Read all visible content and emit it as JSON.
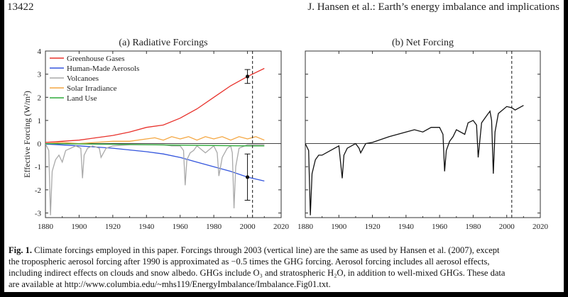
{
  "header": {
    "page_number": "13422",
    "running_title": "J. Hansen et al.: Earth’s energy imbalance and implications"
  },
  "colors": {
    "greenhouse": "#e8322c",
    "aerosols": "#3355dd",
    "volcanoes": "#a9a9a9",
    "solar": "#f4a640",
    "landuse": "#2eaa3a",
    "net": "#111111"
  },
  "chart_data": [
    {
      "type": "line",
      "title": "(a)  Radiative Forcings",
      "xlabel": "",
      "ylabel": "Effective Forcing (W/m²)",
      "xlim": [
        1880,
        2020
      ],
      "ylim": [
        -3.2,
        4
      ],
      "xticks": [
        1880,
        1900,
        1920,
        1940,
        1960,
        1980,
        2000,
        2020
      ],
      "yticks": [
        -3,
        -2,
        -1,
        0,
        1,
        2,
        3,
        4
      ],
      "vline_x": 2003,
      "legend_position": "top-left",
      "series": [
        {
          "name": "Greenhouse Gases",
          "color_key": "greenhouse",
          "x": [
            1880,
            1890,
            1900,
            1910,
            1920,
            1930,
            1940,
            1950,
            1960,
            1970,
            1980,
            1990,
            2000,
            2010
          ],
          "values": [
            0.05,
            0.1,
            0.15,
            0.25,
            0.35,
            0.5,
            0.7,
            0.8,
            1.1,
            1.5,
            2.0,
            2.5,
            2.9,
            3.25
          ]
        },
        {
          "name": "Human-Made Aerosols",
          "color_key": "aerosols",
          "x": [
            1880,
            1900,
            1920,
            1940,
            1950,
            1960,
            1970,
            1980,
            1990,
            2000,
            2010
          ],
          "values": [
            -0.02,
            -0.1,
            -0.2,
            -0.35,
            -0.45,
            -0.6,
            -0.8,
            -1.0,
            -1.2,
            -1.45,
            -1.62
          ]
        },
        {
          "name": "Volcanoes",
          "color_key": "volcanoes",
          "x": [
            1880,
            1882,
            1883,
            1884,
            1886,
            1888,
            1890,
            1892,
            1895,
            1898,
            1901,
            1902,
            1903,
            1905,
            1908,
            1912,
            1913,
            1916,
            1920,
            1930,
            1940,
            1950,
            1955,
            1960,
            1962,
            1963,
            1964,
            1966,
            1968,
            1970,
            1975,
            1980,
            1982,
            1983,
            1985,
            1988,
            1990,
            1991,
            1992,
            1993,
            1995,
            2000,
            2010
          ],
          "values": [
            0.0,
            -0.3,
            -3.1,
            -1.2,
            -0.7,
            -0.5,
            -0.8,
            -0.3,
            -0.2,
            -0.1,
            -0.2,
            -1.5,
            -0.5,
            -0.2,
            -0.1,
            -0.2,
            -0.6,
            -0.2,
            -0.1,
            -0.05,
            -0.05,
            -0.05,
            -0.1,
            -0.1,
            -0.3,
            -1.8,
            -0.7,
            -0.4,
            -0.3,
            -0.1,
            -0.4,
            -0.1,
            -0.4,
            -1.4,
            -0.6,
            -0.2,
            -0.1,
            -0.4,
            -2.8,
            -1.0,
            -0.2,
            -0.05,
            -0.05
          ]
        },
        {
          "name": "Solar Irradiance",
          "color_key": "solar",
          "x": [
            1880,
            1890,
            1900,
            1910,
            1920,
            1930,
            1940,
            1945,
            1950,
            1955,
            1960,
            1965,
            1970,
            1975,
            1980,
            1985,
            1990,
            1995,
            2000,
            2005,
            2010
          ],
          "values": [
            0.0,
            0.05,
            0.0,
            0.05,
            0.1,
            0.1,
            0.2,
            0.25,
            0.15,
            0.3,
            0.2,
            0.3,
            0.15,
            0.3,
            0.2,
            0.3,
            0.15,
            0.3,
            0.2,
            0.3,
            0.15
          ]
        },
        {
          "name": "Land Use",
          "color_key": "landuse",
          "x": [
            1880,
            1920,
            1960,
            2000,
            2010
          ],
          "values": [
            0.0,
            -0.03,
            -0.07,
            -0.1,
            -0.1
          ]
        }
      ],
      "error_bars": [
        {
          "x": 2000,
          "y": 2.9,
          "low": 2.6,
          "high": 3.2
        },
        {
          "x": 2000,
          "y": -1.45,
          "low": -2.45,
          "high": -0.45
        }
      ]
    },
    {
      "type": "line",
      "title": "(b)  Net Forcing",
      "xlabel": "",
      "ylabel": "",
      "xlim": [
        1880,
        2020
      ],
      "ylim": [
        -3.2,
        4
      ],
      "xticks": [
        1880,
        1900,
        1920,
        1940,
        1960,
        1980,
        2000,
        2020
      ],
      "vline_x": 2003,
      "series": [
        {
          "name": "",
          "color_key": "net",
          "x": [
            1880,
            1882,
            1883,
            1884,
            1886,
            1888,
            1890,
            1895,
            1900,
            1902,
            1903,
            1905,
            1910,
            1912,
            1913,
            1916,
            1920,
            1930,
            1940,
            1945,
            1950,
            1955,
            1960,
            1962,
            1963,
            1964,
            1966,
            1968,
            1970,
            1975,
            1977,
            1980,
            1982,
            1983,
            1985,
            1988,
            1990,
            1991,
            1992,
            1993,
            1995,
            2000,
            2003,
            2005,
            2010
          ],
          "values": [
            0.0,
            -0.3,
            -3.1,
            -1.3,
            -0.7,
            -0.5,
            -0.5,
            -0.3,
            -0.1,
            -1.5,
            -0.5,
            -0.2,
            0.0,
            -0.2,
            -0.4,
            0.0,
            0.05,
            0.3,
            0.5,
            0.6,
            0.5,
            0.7,
            0.7,
            0.4,
            -1.2,
            -0.3,
            0.1,
            0.3,
            0.6,
            0.4,
            0.9,
            1.0,
            0.8,
            -0.6,
            0.9,
            1.2,
            1.4,
            1.0,
            -1.3,
            0.5,
            1.3,
            1.6,
            1.55,
            1.45,
            1.65
          ]
        }
      ]
    }
  ],
  "caption": {
    "label": "Fig. 1.",
    "line1": "Climate forcings employed in this paper. Forcings through 2003 (vertical line) are the same as used by Hansen et al. (2007), except",
    "line2": "the tropospheric aerosol forcing after 1990 is approximated as −0.5 times the GHG forcing.  Aerosol forcing includes all aerosol effects,",
    "line3": "including indirect effects on clouds and snow albedo. GHGs include O₃ and stratospheric H₂O, in addition to well-mixed GHGs. These data",
    "line4": "are available at http://www.columbia.edu/~mhs119/EnergyImbalance/Imbalance.Fig01.txt."
  }
}
